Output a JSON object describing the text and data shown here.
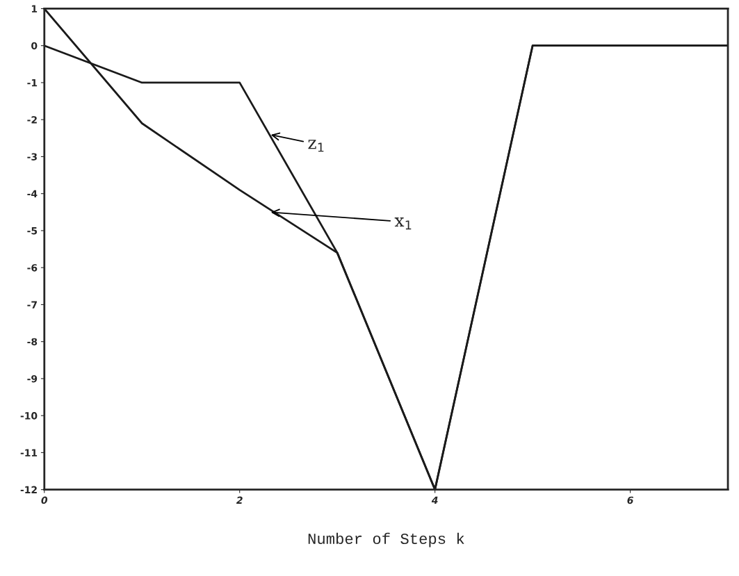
{
  "chart_data": {
    "type": "line",
    "xlabel": "Number of Steps k",
    "xlim": [
      0,
      7
    ],
    "xticks": [
      0,
      2,
      4,
      6
    ],
    "ylim": [
      -12,
      1
    ],
    "yticks": [
      1,
      0,
      -1,
      -2,
      -3,
      -4,
      -5,
      -6,
      -7,
      -8,
      -9,
      -10,
      -11,
      -12
    ],
    "grid": false,
    "legend": false,
    "marker": "none",
    "line_style": "solid",
    "series": [
      {
        "x": [
          0,
          1,
          2,
          3,
          4,
          5,
          6,
          7
        ],
        "color": "#1a1a1a",
        "values": [
          0,
          -1,
          -1,
          -5.6,
          -12,
          0,
          0,
          0
        ]
      },
      {
        "x": [
          0,
          1,
          2,
          3,
          4,
          5,
          6,
          7
        ],
        "color": "#1a1a1a",
        "values": [
          1,
          -2.1,
          -3.9,
          -5.6,
          -12,
          0,
          0,
          0
        ]
      }
    ],
    "annotations": [
      {
        "text": "z$_{1}$",
        "x": 2.3,
        "y": -2.4
      },
      {
        "text": "x$_{1}$",
        "x": 2.3,
        "y": -4.5
      }
    ]
  }
}
